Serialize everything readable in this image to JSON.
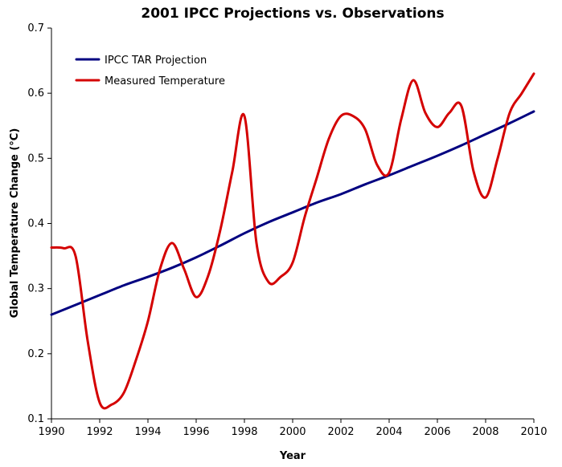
{
  "chart_data": {
    "type": "line",
    "title": "2001 IPCC Projections vs. Observations",
    "xlabel": "Year",
    "ylabel": "Global Temperature Change (°C)",
    "xlim": [
      1990,
      2010
    ],
    "ylim": [
      0.1,
      0.7
    ],
    "x_ticks": [
      "1990",
      "1992",
      "1994",
      "1996",
      "1998",
      "2000",
      "2002",
      "2004",
      "2006",
      "2008",
      "2010"
    ],
    "y_ticks": [
      "0.1",
      "0.2",
      "0.3",
      "0.4",
      "0.5",
      "0.6",
      "0.7"
    ],
    "grid": false,
    "legend": "top-left",
    "series": [
      {
        "name": "IPCC TAR Projection",
        "color": "#000080",
        "x": [
          1990,
          1991,
          1992,
          1993,
          1994,
          1995,
          1996,
          1997,
          1998,
          1999,
          2000,
          2001,
          2002,
          2003,
          2004,
          2005,
          2006,
          2007,
          2008,
          2009,
          2010
        ],
        "y": [
          0.26,
          0.275,
          0.29,
          0.305,
          0.318,
          0.332,
          0.348,
          0.366,
          0.385,
          0.402,
          0.417,
          0.432,
          0.445,
          0.46,
          0.474,
          0.489,
          0.504,
          0.52,
          0.537,
          0.554,
          0.572
        ]
      },
      {
        "name": "Measured Temperature",
        "color": "#d40000",
        "x": [
          1990,
          1990.5,
          1991,
          1991.5,
          1992,
          1992.5,
          1993,
          1993.5,
          1994,
          1994.5,
          1995,
          1995.5,
          1996,
          1996.5,
          1997,
          1997.5,
          1998,
          1998.5,
          1999,
          1999.5,
          2000,
          2000.5,
          2001,
          2001.5,
          2002,
          2002.5,
          2003,
          2003.5,
          2004,
          2004.5,
          2005,
          2005.5,
          2006,
          2006.5,
          2007,
          2007.5,
          2008,
          2008.5,
          2009,
          2009.5,
          2010
        ],
        "y": [
          0.363,
          0.362,
          0.35,
          0.22,
          0.125,
          0.122,
          0.14,
          0.19,
          0.25,
          0.33,
          0.37,
          0.33,
          0.287,
          0.32,
          0.39,
          0.48,
          0.565,
          0.37,
          0.31,
          0.318,
          0.34,
          0.41,
          0.47,
          0.53,
          0.565,
          0.565,
          0.545,
          0.49,
          0.478,
          0.56,
          0.62,
          0.57,
          0.548,
          0.57,
          0.58,
          0.48,
          0.44,
          0.5,
          0.57,
          0.6,
          0.63
        ]
      }
    ]
  }
}
